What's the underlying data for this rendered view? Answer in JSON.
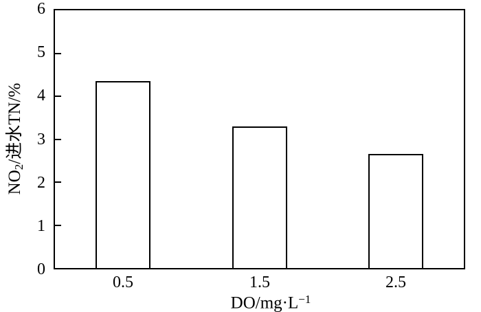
{
  "figure": {
    "background_color": "#ffffff",
    "line_color": "#000000"
  },
  "chart_data": {
    "type": "bar",
    "title": "",
    "categories": [
      "0.5",
      "1.5",
      "2.5"
    ],
    "values": [
      4.35,
      3.3,
      2.65
    ],
    "xlabel_text": "DO/mg·L−1",
    "ylabel_text": "NO2/进水TN/%",
    "xlabel_parts": [
      {
        "t": "DO/mg·L",
        "style": "normal"
      },
      {
        "t": "−1",
        "style": "sup"
      }
    ],
    "ylabel_parts": [
      {
        "t": "NO",
        "style": "normal"
      },
      {
        "t": "2",
        "style": "sub"
      },
      {
        "t": "/进水TN/%",
        "style": "normal"
      }
    ],
    "ylim": [
      0,
      6
    ],
    "y_ticks": [
      0,
      1,
      2,
      3,
      4,
      5,
      6
    ],
    "y_tick_labels": [
      "0",
      "1",
      "2",
      "3",
      "4",
      "5",
      "6"
    ],
    "bar_fill_color": "#ffffff",
    "bar_edge_color": "#000000",
    "grid": false,
    "legend": null,
    "frame": "full-box",
    "tick_direction": "in"
  }
}
